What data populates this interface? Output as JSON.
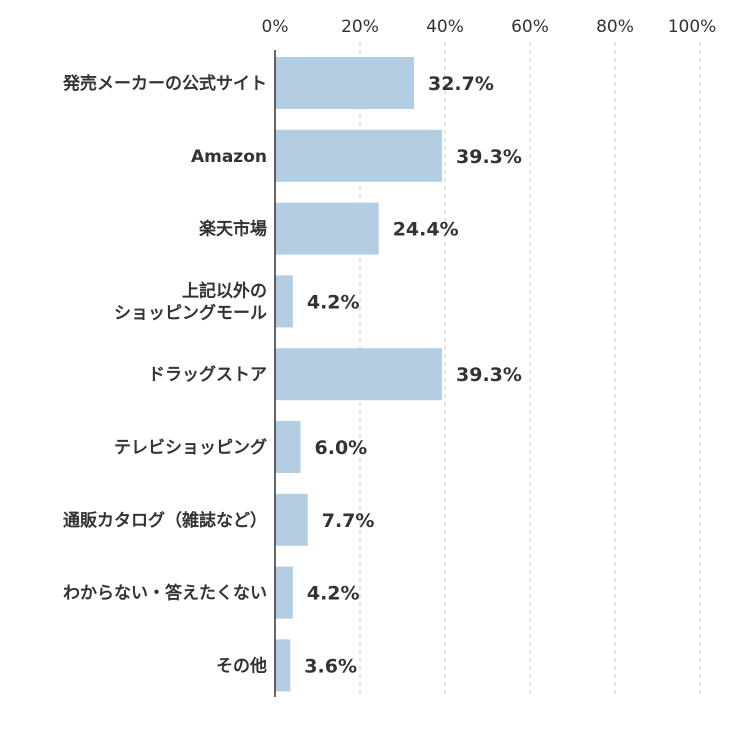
{
  "chart_data": {
    "type": "bar",
    "orientation": "horizontal",
    "categories": [
      [
        "発売メーカーの公式サイト"
      ],
      [
        "Amazon"
      ],
      [
        "楽天市場"
      ],
      [
        "上記以外の",
        "ショッピングモール"
      ],
      [
        "ドラッグストア"
      ],
      [
        "テレビショッピング"
      ],
      [
        "通販カタログ（雑誌など）"
      ],
      [
        "わからない・答えたくない"
      ],
      [
        "その他"
      ]
    ],
    "values": [
      32.7,
      39.3,
      24.4,
      4.2,
      39.3,
      6.0,
      7.7,
      4.2,
      3.6
    ],
    "value_labels": [
      "32.7%",
      "39.3%",
      "24.4%",
      "4.2%",
      "39.3%",
      "6.0%",
      "7.7%",
      "4.2%",
      "3.6%"
    ],
    "xlim": [
      0,
      100
    ],
    "x_ticks": [
      0,
      20,
      40,
      60,
      80,
      100
    ],
    "x_tick_labels": [
      "0%",
      "20%",
      "40%",
      "60%",
      "80%",
      "100%"
    ],
    "x_axis_position": "top",
    "grid": true,
    "legend": "none",
    "bar_color": "#b3cde3",
    "grid_color": "#c8c8c8",
    "axis_color": "#333333",
    "text_color": "#333333"
  }
}
